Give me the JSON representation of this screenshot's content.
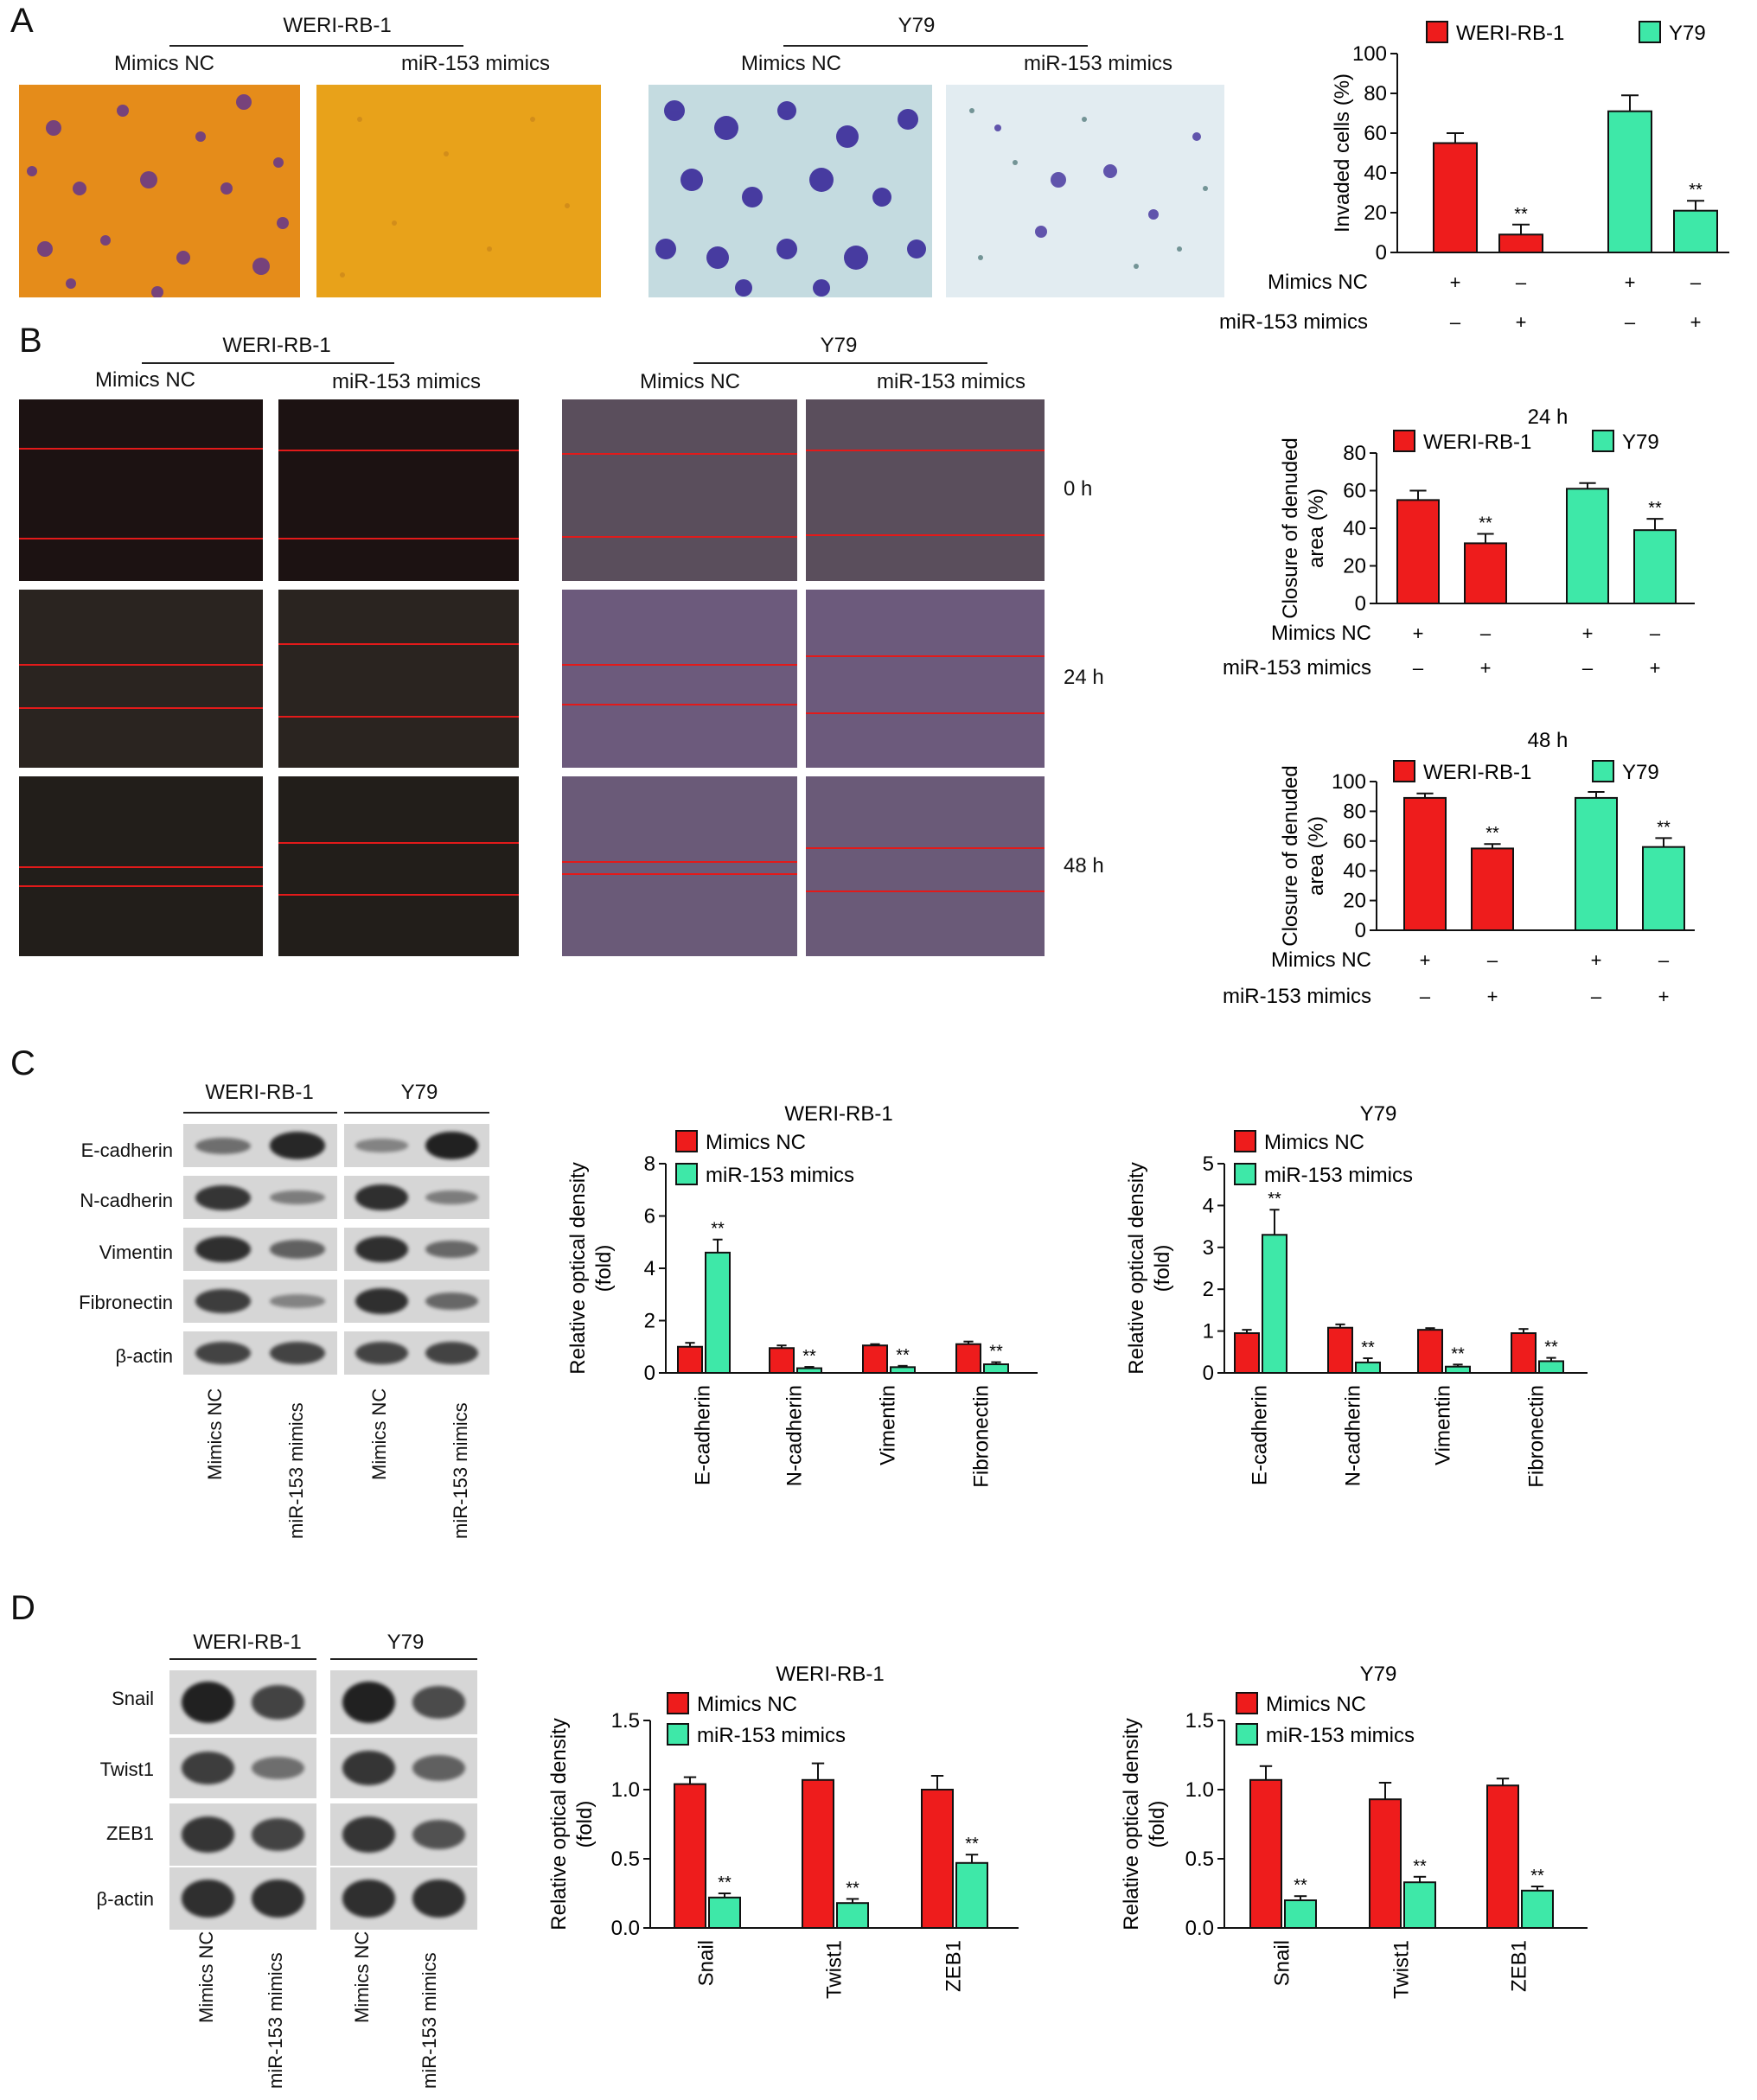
{
  "panels": {
    "A": "A",
    "B": "B",
    "C": "C",
    "D": "D"
  },
  "labels": {
    "weri": "WERI-RB-1",
    "y79": "Y79",
    "mimics_nc": "Mimics NC",
    "mir153": "miR-153 mimics",
    "t0": "0 h",
    "t24": "24 h",
    "t48": "48 h",
    "plus": "+",
    "minus": "–"
  },
  "blot_proteins_c": [
    "E-cadherin",
    "N-cadherin",
    "Vimentin",
    "Fibronectin",
    "β-actin"
  ],
  "blot_proteins_d": [
    "Snail",
    "Twist1",
    "ZEB1",
    "β-actin"
  ],
  "colors": {
    "red": "#ee1c1c",
    "green": "#3ee8a8",
    "bar_stroke": "#111111",
    "scratch_line": "#e21a1a",
    "a_weri_bg": "#e8901c",
    "a_y79_bg": "#d4e0e4"
  },
  "chart_data": [
    {
      "id": "A",
      "type": "bar",
      "ylabel": "Invaded cells (%)",
      "ylim": [
        0,
        100
      ],
      "yticks": [
        0,
        20,
        40,
        60,
        80,
        100
      ],
      "legend": [
        "WERI-RB-1",
        "Y79"
      ],
      "groups": [
        {
          "name": "WERI-RB-1",
          "values": [
            55,
            9
          ],
          "errors": [
            5,
            5
          ],
          "sig": [
            "",
            "**"
          ]
        },
        {
          "name": "Y79",
          "values": [
            71,
            21
          ],
          "errors": [
            8,
            5
          ],
          "sig": [
            "",
            "**"
          ]
        }
      ],
      "condition_rows": [
        {
          "label": "Mimics NC",
          "signs": [
            "+",
            "–",
            "+",
            "–"
          ]
        },
        {
          "label": "miR-153 mimics",
          "signs": [
            "–",
            "+",
            "–",
            "+"
          ]
        }
      ]
    },
    {
      "id": "B24",
      "type": "bar",
      "title": "24 h",
      "ylabel": "Closure of denuded area (%)",
      "ylim": [
        0,
        80
      ],
      "yticks": [
        0,
        20,
        40,
        60,
        80
      ],
      "legend": [
        "WERI-RB-1",
        "Y79"
      ],
      "groups": [
        {
          "name": "WERI-RB-1",
          "values": [
            55,
            32
          ],
          "errors": [
            5,
            5
          ],
          "sig": [
            "",
            "**"
          ]
        },
        {
          "name": "Y79",
          "values": [
            61,
            39
          ],
          "errors": [
            3,
            6
          ],
          "sig": [
            "",
            "**"
          ]
        }
      ],
      "condition_rows": [
        {
          "label": "Mimics NC",
          "signs": [
            "+",
            "–",
            "+",
            "–"
          ]
        },
        {
          "label": "miR-153 mimics",
          "signs": [
            "–",
            "+",
            "–",
            "+"
          ]
        }
      ]
    },
    {
      "id": "B48",
      "type": "bar",
      "title": "48 h",
      "ylabel": "Closure of denuded area (%)",
      "ylim": [
        0,
        100
      ],
      "yticks": [
        0,
        20,
        40,
        60,
        80,
        100
      ],
      "legend": [
        "WERI-RB-1",
        "Y79"
      ],
      "groups": [
        {
          "name": "WERI-RB-1",
          "values": [
            89,
            55
          ],
          "errors": [
            3,
            3
          ],
          "sig": [
            "",
            "**"
          ]
        },
        {
          "name": "Y79",
          "values": [
            89,
            56
          ],
          "errors": [
            4,
            6
          ],
          "sig": [
            "",
            "**"
          ]
        }
      ],
      "condition_rows": [
        {
          "label": "Mimics NC",
          "signs": [
            "+",
            "–",
            "+",
            "–"
          ]
        },
        {
          "label": "miR-153 mimics",
          "signs": [
            "–",
            "+",
            "–",
            "+"
          ]
        }
      ]
    },
    {
      "id": "C1",
      "type": "bar",
      "title": "WERI-RB-1",
      "ylabel": "Relative optical density (fold)",
      "ylim": [
        0,
        8
      ],
      "yticks": [
        0,
        2,
        4,
        6,
        8
      ],
      "categories": [
        "E-cadherin",
        "N-cadherin",
        "Vimentin",
        "Fibronectin"
      ],
      "series": [
        {
          "name": "Mimics NC",
          "values": [
            1.0,
            0.95,
            1.05,
            1.1
          ],
          "errors": [
            0.15,
            0.1,
            0.05,
            0.1
          ]
        },
        {
          "name": "miR-153 mimics",
          "values": [
            4.6,
            0.18,
            0.22,
            0.33
          ],
          "errors": [
            0.5,
            0.05,
            0.05,
            0.08
          ]
        }
      ],
      "sig": [
        "**",
        "**",
        "**",
        "**"
      ]
    },
    {
      "id": "C2",
      "type": "bar",
      "title": "Y79",
      "ylabel": "Relative optical density (fold)",
      "ylim": [
        0,
        5
      ],
      "yticks": [
        0,
        1,
        2,
        3,
        4,
        5
      ],
      "categories": [
        "E-cadherin",
        "N-cadherin",
        "Vimentin",
        "Fibronectin"
      ],
      "series": [
        {
          "name": "Mimics NC",
          "values": [
            0.95,
            1.08,
            1.03,
            0.95
          ],
          "errors": [
            0.08,
            0.08,
            0.04,
            0.1
          ]
        },
        {
          "name": "miR-153 mimics",
          "values": [
            3.3,
            0.25,
            0.15,
            0.28
          ],
          "errors": [
            0.6,
            0.1,
            0.05,
            0.08
          ]
        }
      ],
      "sig": [
        "**",
        "**",
        "**",
        "**"
      ]
    },
    {
      "id": "D1",
      "type": "bar",
      "title": "WERI-RB-1",
      "ylabel": "Relative optical density (fold)",
      "ylim": [
        0,
        1.5
      ],
      "yticks": [
        "0.0",
        "0.5",
        "1.0",
        "1.5"
      ],
      "categories": [
        "Snail",
        "Twist1",
        "ZEB1"
      ],
      "series": [
        {
          "name": "Mimics NC",
          "values": [
            1.04,
            1.07,
            1.0
          ],
          "errors": [
            0.05,
            0.12,
            0.1
          ]
        },
        {
          "name": "miR-153 mimics",
          "values": [
            0.22,
            0.18,
            0.47
          ],
          "errors": [
            0.03,
            0.03,
            0.06
          ]
        }
      ],
      "sig": [
        "**",
        "**",
        "**"
      ]
    },
    {
      "id": "D2",
      "type": "bar",
      "title": "Y79",
      "ylabel": "Relative optical density (fold)",
      "ylim": [
        0,
        1.5
      ],
      "yticks": [
        "0.0",
        "0.5",
        "1.0",
        "1.5"
      ],
      "categories": [
        "Snail",
        "Twist1",
        "ZEB1"
      ],
      "series": [
        {
          "name": "Mimics NC",
          "values": [
            1.07,
            0.93,
            1.03
          ],
          "errors": [
            0.1,
            0.12,
            0.05
          ]
        },
        {
          "name": "miR-153 mimics",
          "values": [
            0.2,
            0.33,
            0.27
          ],
          "errors": [
            0.03,
            0.04,
            0.03
          ]
        }
      ],
      "sig": [
        "**",
        "**",
        "**"
      ]
    }
  ]
}
